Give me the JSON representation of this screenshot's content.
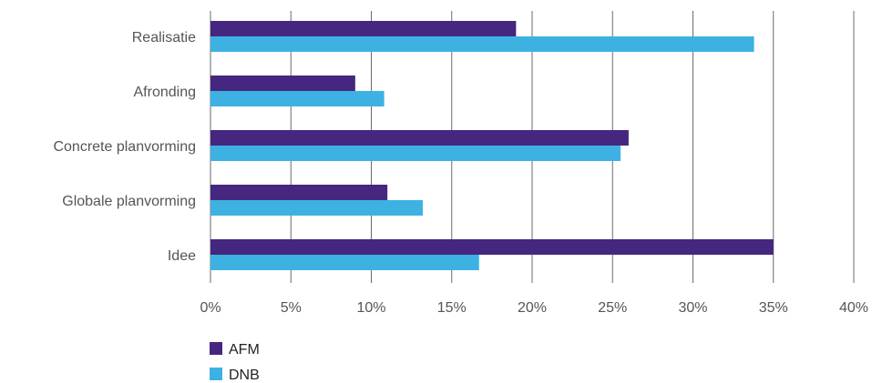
{
  "chart_data": {
    "type": "bar",
    "orientation": "horizontal",
    "title": "",
    "xlabel": "",
    "ylabel": "",
    "categories": [
      "Realisatie",
      "Afronding",
      "Concrete planvorming",
      "Globale planvorming",
      "Idee"
    ],
    "series": [
      {
        "name": "AFM",
        "values": [
          19,
          9,
          26,
          11,
          35
        ]
      },
      {
        "name": "DNB",
        "values": [
          33.8,
          10.8,
          25.5,
          13.2,
          16.7
        ]
      }
    ],
    "xlim": [
      0,
      40
    ],
    "x_ticks": [
      0,
      5,
      10,
      15,
      20,
      25,
      30,
      35,
      40
    ],
    "x_tick_labels": [
      "0%",
      "5%",
      "10%",
      "15%",
      "20%",
      "25%",
      "30%",
      "35%",
      "40%"
    ],
    "grid": "vertical",
    "legend_position": "bottom-left"
  },
  "colors": {
    "AFM": "#45277f",
    "DNB": "#3eb1e3",
    "grid": "#6b6b6b"
  }
}
